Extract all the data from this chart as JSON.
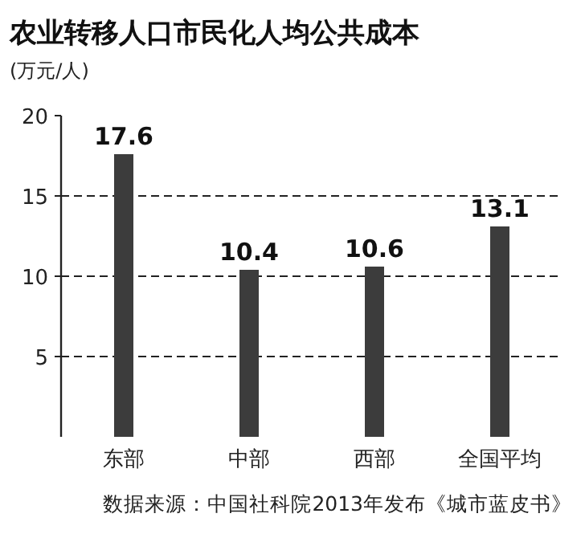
{
  "chart_data": {
    "type": "bar",
    "title": "农业转移人口市民化人均公共成本",
    "ylabel": "(万元/人)",
    "categories": [
      "东部",
      "中部",
      "西部",
      "全国平均"
    ],
    "values": [
      17.6,
      10.4,
      10.6,
      13.1
    ],
    "color": "#3c3c3c",
    "ylim": [
      0,
      20
    ],
    "yticks": [
      5,
      10,
      15,
      20
    ],
    "grid": "y",
    "data_labels": true,
    "annotations": [
      "数据来源：中国社科院2013年发布《城市蓝皮书》"
    ]
  }
}
